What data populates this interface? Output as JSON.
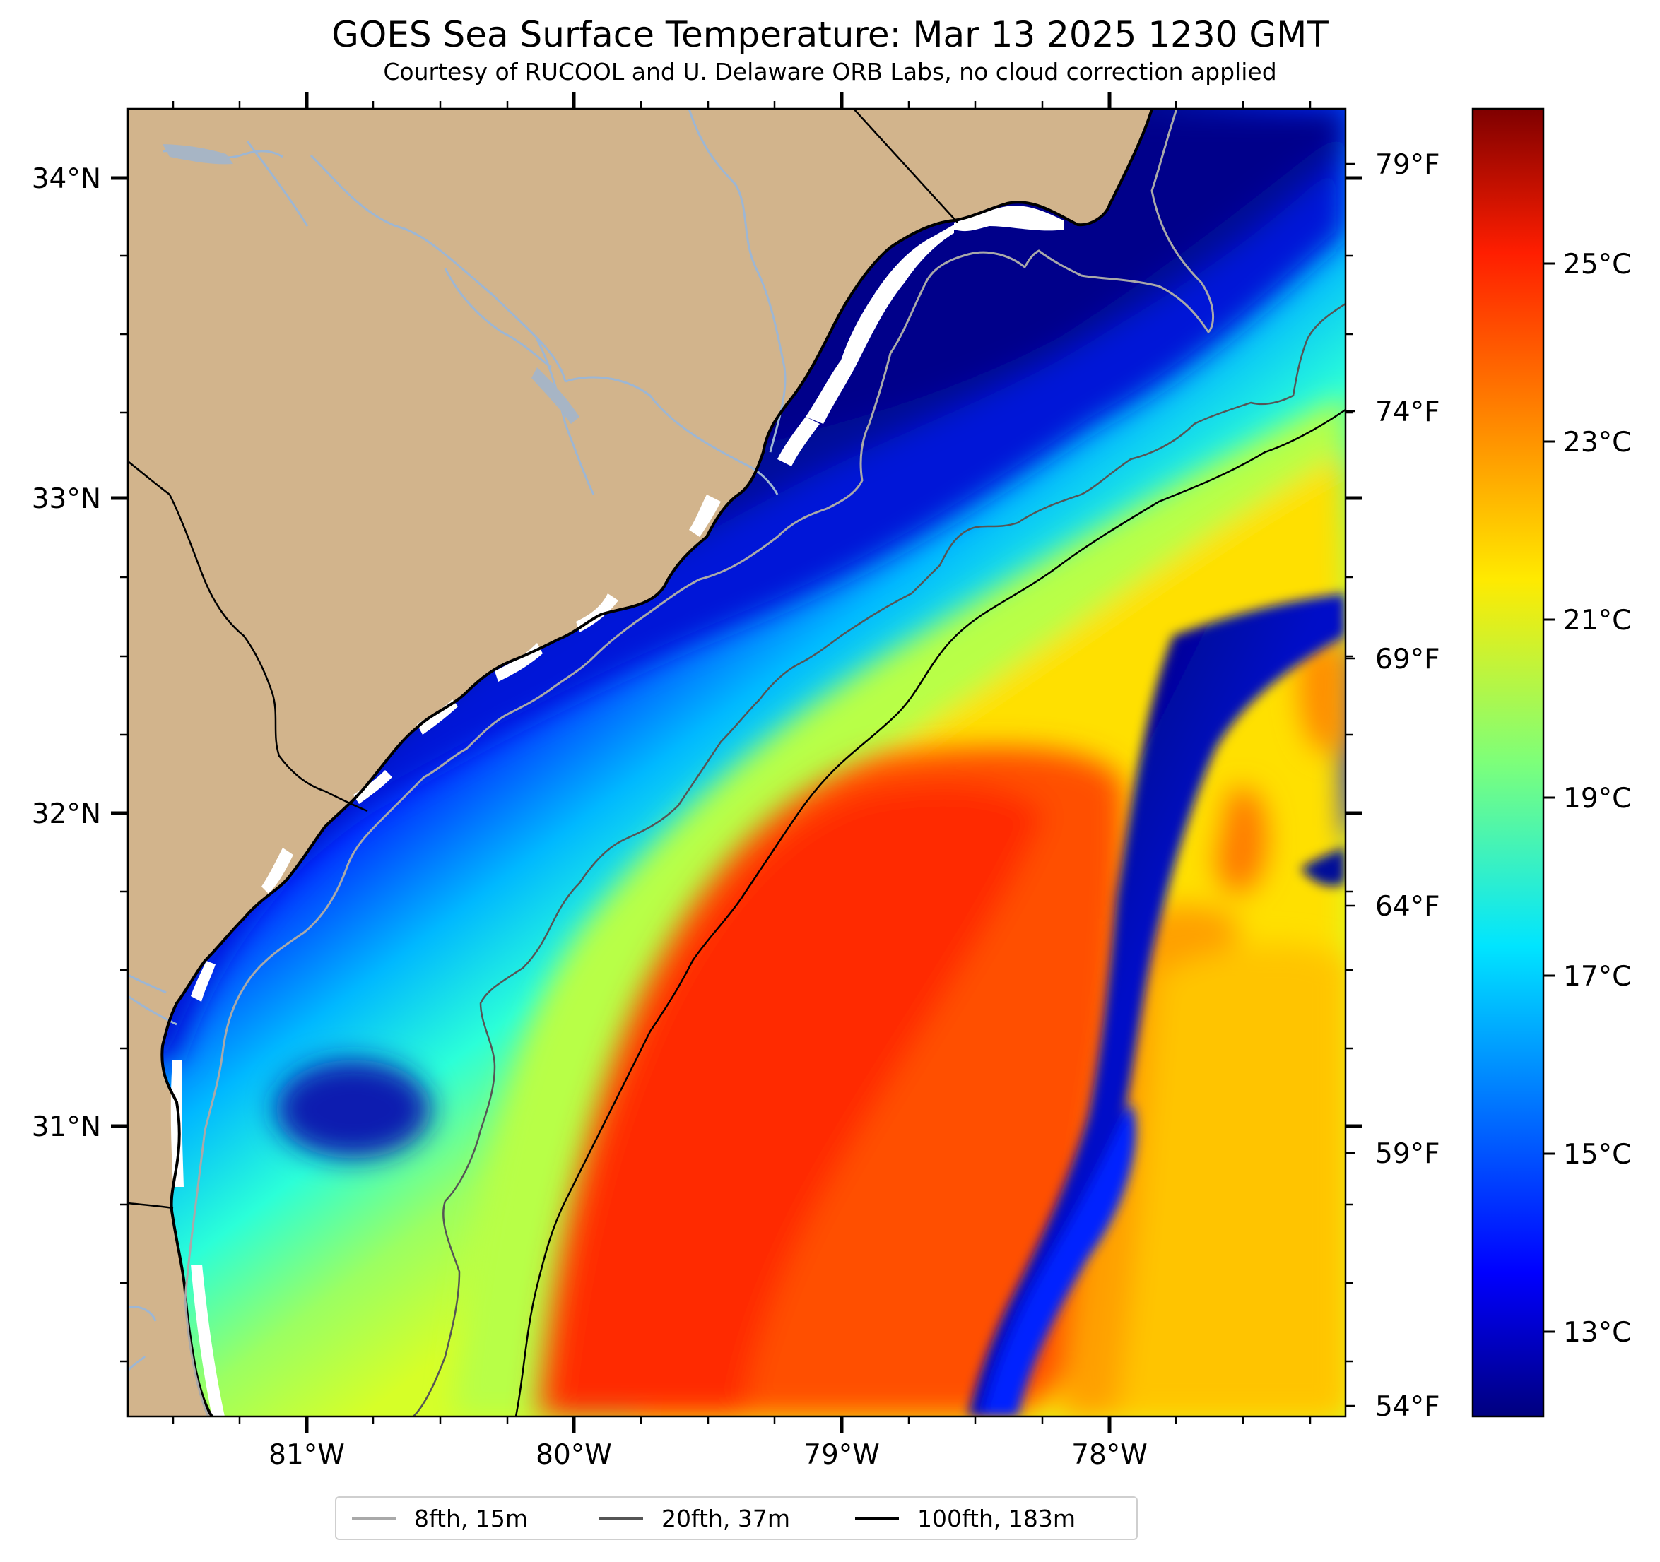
{
  "title": "GOES Sea Surface Temperature: Mar 13 2025 1230 GMT",
  "subtitle": "Courtesy of RUCOOL and U. Delaware ORB Labs, no cloud correction applied",
  "axes": {
    "lat_ticks": [
      "34°N",
      "33°N",
      "32°N",
      "31°N"
    ],
    "lon_ticks": [
      "81°W",
      "80°W",
      "79°W",
      "78°W"
    ],
    "fahrenheit_ticks": [
      "79°F",
      "74°F",
      "69°F",
      "64°F",
      "59°F",
      "54°F"
    ]
  },
  "colorbar": {
    "celsius_ticks": [
      "25°C",
      "23°C",
      "21°C",
      "19°C",
      "17°C",
      "15°C",
      "13°C"
    ],
    "colormap": "jet"
  },
  "legend": {
    "items": [
      {
        "label": "8fth, 15m",
        "color": "#a9a9a9"
      },
      {
        "label": "20fth, 37m",
        "color": "#555555"
      },
      {
        "label": "100fth, 183m",
        "color": "#000000"
      }
    ]
  },
  "colors": {
    "land": "#d2b48c",
    "coast_gap": "#ffffff",
    "river": "#9db6d3"
  }
}
